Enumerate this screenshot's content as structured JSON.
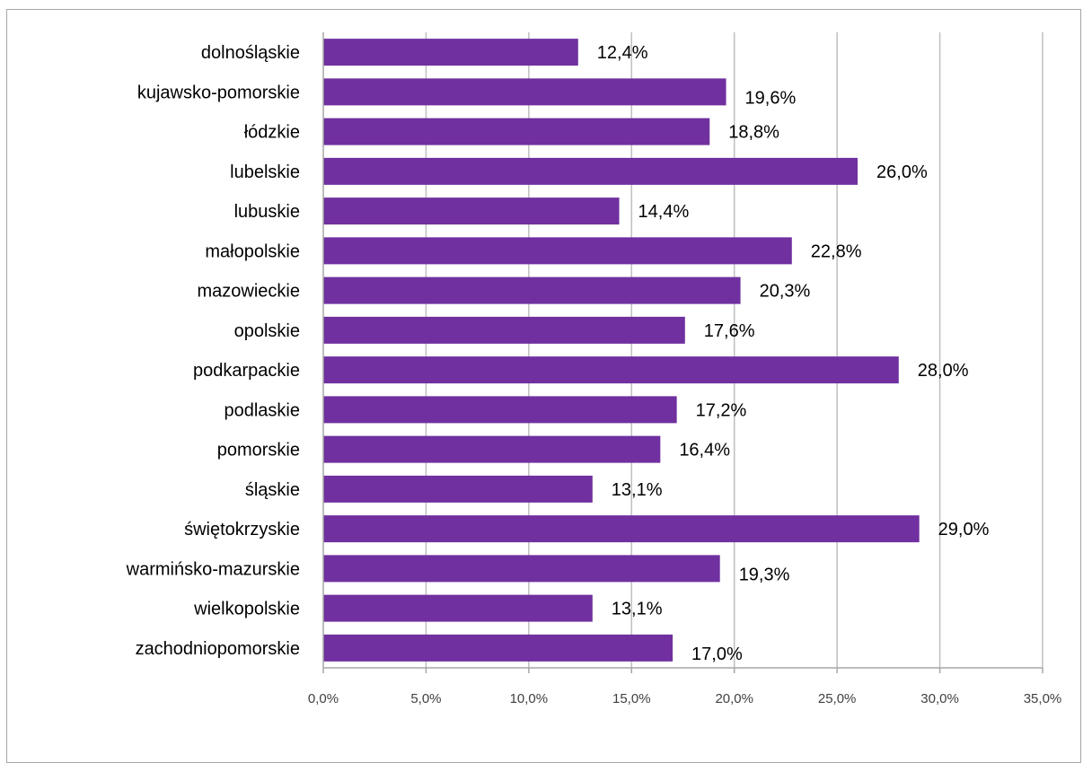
{
  "chart_data": {
    "type": "bar",
    "orientation": "horizontal",
    "categories": [
      "dolnośląskie",
      "kujawsko-pomorskie",
      "łódzkie",
      "lubelskie",
      "lubuskie",
      "małopolskie",
      "mazowieckie",
      "opolskie",
      "podkarpackie",
      "podlaskie",
      "pomorskie",
      "śląskie",
      "świętokrzyskie",
      "warmińsko-mazurskie",
      "wielkopolskie",
      "zachodniopomorskie"
    ],
    "values": [
      12.4,
      19.6,
      18.8,
      26.0,
      14.4,
      22.8,
      20.3,
      17.6,
      28.0,
      17.2,
      16.4,
      13.1,
      29.0,
      19.3,
      13.1,
      17.0
    ],
    "data_labels": [
      "12,4%",
      "19,6%",
      "18,8%",
      "26,0%",
      "14,4%",
      "22,8%",
      "20,3%",
      "17,6%",
      "28,0%",
      "17,2%",
      "16,4%",
      "13,1%",
      "29,0%",
      "19,3%",
      "13,1%",
      "17,0%"
    ],
    "x_ticks": [
      0,
      5,
      10,
      15,
      20,
      25,
      30,
      35
    ],
    "x_tick_labels": [
      "0,0%",
      "5,0%",
      "10,0%",
      "15,0%",
      "20,0%",
      "25,0%",
      "30,0%",
      "35,0%"
    ],
    "xlim": [
      0,
      35
    ],
    "title": "",
    "xlabel": "",
    "ylabel": "",
    "grid": "vertical",
    "legend": "none",
    "colors": {
      "bar": "#7030a0",
      "grid": "#bfbfbf",
      "axis": "#a6a6a6",
      "text": "#000000",
      "tick_text": "#404040",
      "frame": "#a6a6a6"
    }
  }
}
